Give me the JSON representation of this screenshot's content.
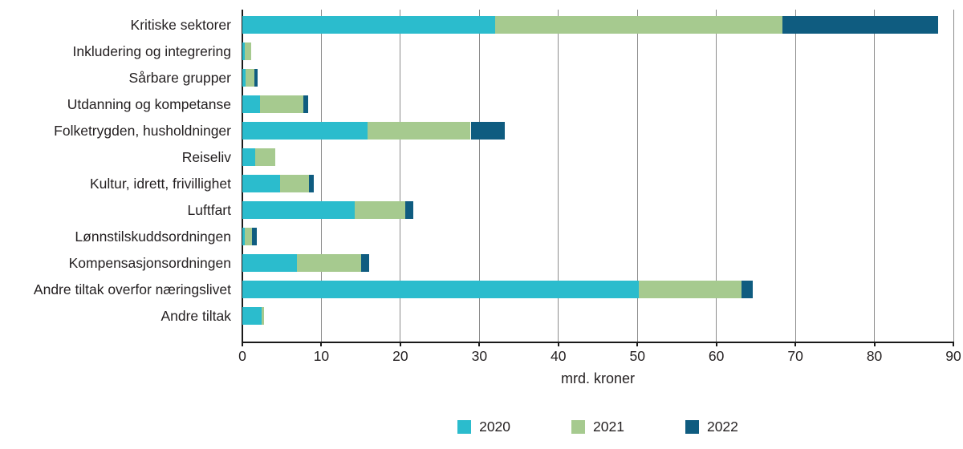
{
  "chart_data": {
    "type": "bar",
    "orientation": "horizontal",
    "stacked": true,
    "title": "",
    "xlabel": "mrd. kroner",
    "ylabel": "",
    "xlim": [
      0,
      90
    ],
    "x_ticks": [
      0,
      10,
      20,
      30,
      40,
      50,
      60,
      70,
      80,
      90
    ],
    "grid": true,
    "legend_position": "bottom",
    "categories": [
      "Kritiske sektorer",
      "Inkludering og integrering",
      "Sårbare grupper",
      "Utdanning og kompetanse",
      "Folketrygden, husholdninger",
      "Reiseliv",
      "Kultur, idrett, frivillighet",
      "Luftfart",
      "Lønnstilskuddsordningen",
      "Kompensasjonsordningen",
      "Andre tiltak overfor næringslivet",
      "Andre tiltak"
    ],
    "series": [
      {
        "name": "2020",
        "color": "#2bbccd",
        "values": [
          32.0,
          0.3,
          0.4,
          2.2,
          15.8,
          1.6,
          4.8,
          14.2,
          0.3,
          6.9,
          50.2,
          2.4
        ]
      },
      {
        "name": "2021",
        "color": "#a6ca8f",
        "values": [
          36.4,
          0.8,
          1.1,
          5.5,
          13.1,
          2.6,
          3.6,
          6.4,
          0.9,
          8.1,
          13.0,
          0.3
        ]
      },
      {
        "name": "2022",
        "color": "#0f5c80",
        "values": [
          19.7,
          0,
          0.4,
          0.6,
          4.3,
          0,
          0.6,
          1.0,
          0.6,
          1.0,
          1.4,
          0
        ]
      }
    ]
  },
  "axis": {
    "xlabel": "mrd. kroner"
  },
  "colors": {
    "grid": "#8c8c8c",
    "axis": "#1a1a1a",
    "text": "#231f20",
    "background": "#ffffff"
  }
}
